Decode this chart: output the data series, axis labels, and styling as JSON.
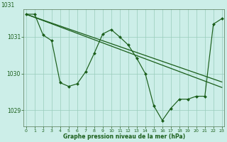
{
  "bg_color": "#cceee8",
  "grid_color": "#99ccbb",
  "line_color": "#1a5e1a",
  "xlim": [
    -0.3,
    23.3
  ],
  "ylim": [
    1028.55,
    1031.75
  ],
  "yticks": [
    1029,
    1030,
    1031
  ],
  "xticks": [
    0,
    1,
    2,
    3,
    4,
    5,
    6,
    7,
    8,
    9,
    10,
    11,
    12,
    13,
    14,
    15,
    16,
    17,
    18,
    19,
    20,
    21,
    22,
    23
  ],
  "xlabel": "Graphe pression niveau de la mer (hPa)",
  "trend1_x": [
    0,
    23
  ],
  "trend1_y": [
    1031.62,
    1029.62
  ],
  "trend2_x": [
    0,
    23
  ],
  "trend2_y": [
    1031.62,
    1029.77
  ],
  "main_x": [
    0,
    1,
    2,
    3,
    4,
    5,
    6,
    7,
    8,
    9,
    10,
    11,
    12,
    13,
    14,
    15,
    16,
    17,
    18,
    19,
    20,
    21,
    22,
    23
  ],
  "main_y": [
    1031.62,
    1031.62,
    1031.05,
    1030.9,
    1029.75,
    1029.65,
    1029.72,
    1030.05,
    1030.55,
    1031.08,
    1031.2,
    1031.0,
    1030.78,
    1030.42,
    1030.0,
    1029.12,
    1028.72,
    1029.05,
    1029.3,
    1029.3,
    1029.38,
    1029.38,
    1031.35,
    1031.5
  ],
  "top_ytick": "1031"
}
